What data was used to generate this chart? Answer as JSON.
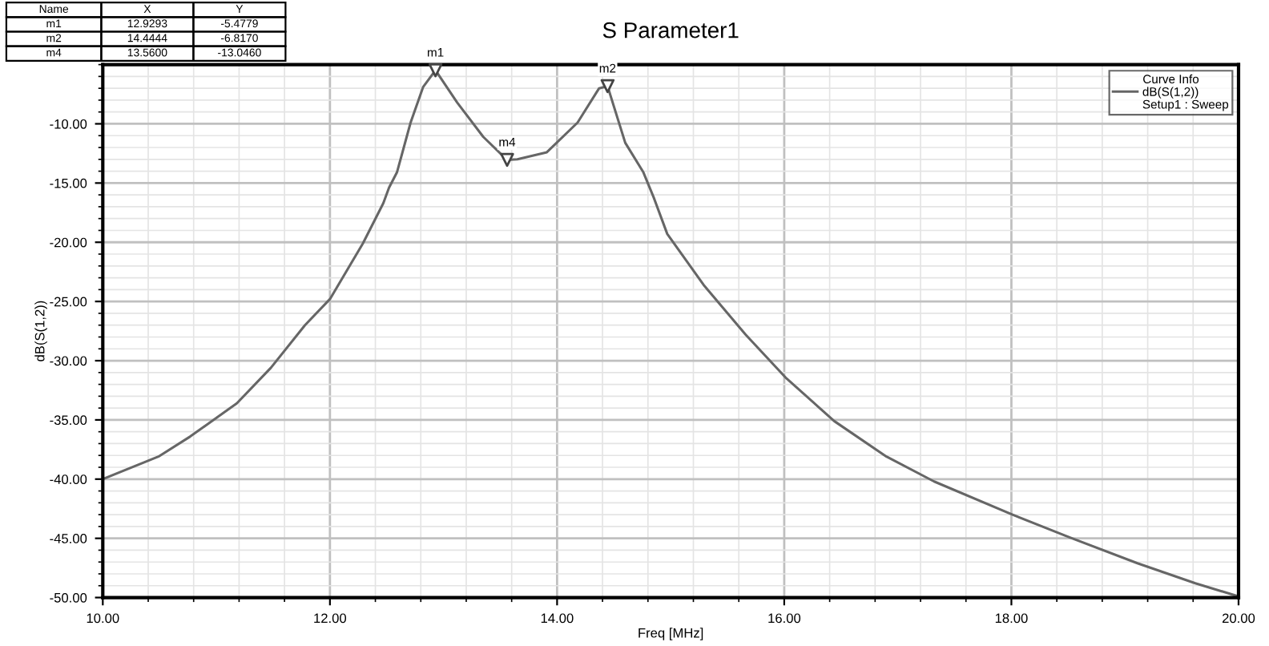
{
  "chart_data": {
    "type": "line",
    "title": "S Parameter1",
    "xlabel": "Freq [MHz]",
    "ylabel": "dB(S(1,2))",
    "legend_title": "Curve Info",
    "x": [
      10.0,
      10.49,
      10.77,
      11.18,
      11.48,
      11.78,
      12.0,
      12.29,
      12.47,
      12.52,
      12.59,
      12.71,
      12.82,
      12.9293,
      13.12,
      13.35,
      13.56,
      13.65,
      13.91,
      14.18,
      14.37,
      14.4444,
      14.6,
      14.76,
      14.85,
      14.97,
      15.29,
      15.66,
      16.02,
      16.44,
      16.9,
      17.32,
      18.01,
      18.52,
      19.11,
      19.62,
      20.0
    ],
    "series": [
      {
        "name": "dB(S(1,2))",
        "color": "#666666",
        "values": [
          -40.0,
          -38.1,
          -36.4,
          -33.6,
          -30.6,
          -27.0,
          -24.8,
          -20.1,
          -16.7,
          -15.4,
          -14.1,
          -9.9,
          -6.9,
          -5.48,
          -8.2,
          -11.1,
          -13.05,
          -13.0,
          -12.4,
          -9.9,
          -7.0,
          -6.82,
          -11.6,
          -14.1,
          -16.2,
          -19.3,
          -23.6,
          -27.8,
          -31.5,
          -35.1,
          -38.1,
          -40.2,
          -43.0,
          -44.95,
          -47.1,
          -48.8,
          -49.9
        ]
      }
    ],
    "xlim": [
      10,
      20
    ],
    "ylim": [
      -50,
      -5
    ],
    "xticks": [
      {
        "value": 10,
        "label": "10.00"
      },
      {
        "value": 12,
        "label": "12.00"
      },
      {
        "value": 14,
        "label": "14.00"
      },
      {
        "value": 16,
        "label": "16.00"
      },
      {
        "value": 18,
        "label": "18.00"
      },
      {
        "value": 20,
        "label": "20.00"
      }
    ],
    "yticks": [
      {
        "value": -50,
        "label": "-50.00"
      },
      {
        "value": -45,
        "label": "-45.00"
      },
      {
        "value": -40,
        "label": "-40.00"
      },
      {
        "value": -35,
        "label": "-35.00"
      },
      {
        "value": -30,
        "label": "-30.00"
      },
      {
        "value": -25,
        "label": "-25.00"
      },
      {
        "value": -20,
        "label": "-20.00"
      },
      {
        "value": -15,
        "label": "-15.00"
      },
      {
        "value": -10,
        "label": "-10.00"
      }
    ],
    "grid": true,
    "legend": "top right",
    "annotations": [
      "Name",
      "X",
      "Y",
      "m1",
      "12.9293",
      "-5.4779",
      "m2",
      "14.4444",
      "-6.8170",
      "m4",
      "13.5600",
      "-13.0460",
      "Setup1 : Sweep",
      {
        "text": "m1",
        "x": 12.9293,
        "y": -5.4779
      },
      {
        "text": "m2",
        "x": 14.4444,
        "y": -6.817
      },
      {
        "text": "m4",
        "x": 13.56,
        "y": -13.046
      }
    ]
  }
}
